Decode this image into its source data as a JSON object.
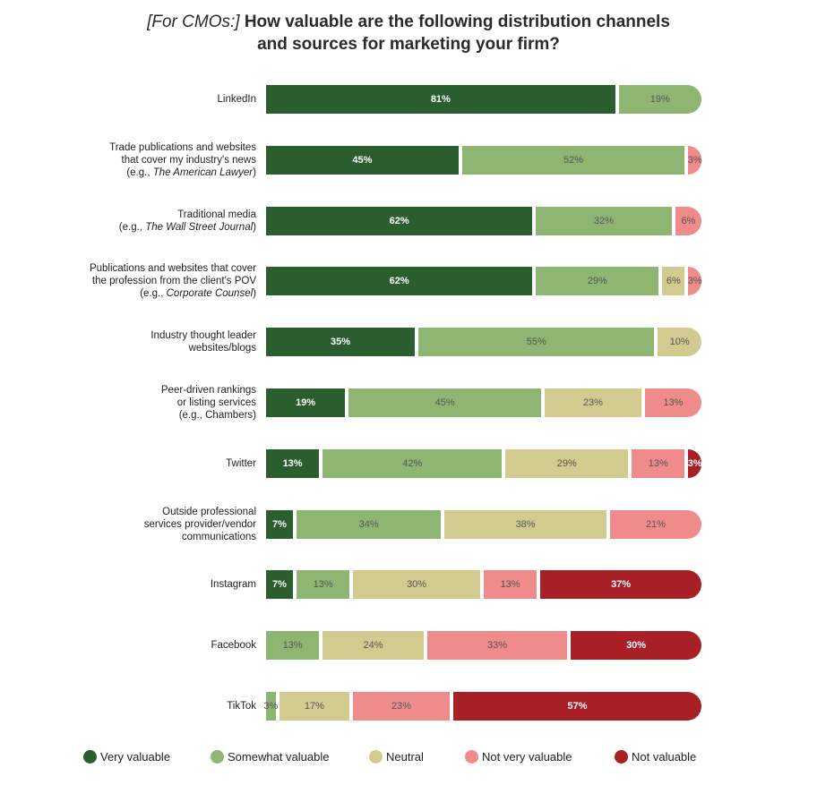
{
  "title": {
    "prefix": "[For CMOs:]",
    "line1": " How valuable are the following distribution channels",
    "line2": "and sources for marketing your firm?"
  },
  "colors": {
    "very_valuable": "#2b5e2e",
    "somewhat_valuable": "#8fb573",
    "neutral": "#d2cb8f",
    "not_very_valuable": "#f08b8b",
    "not_valuable": "#a81f25"
  },
  "legend": [
    {
      "key": "very_valuable",
      "label": "Very valuable"
    },
    {
      "key": "somewhat_valuable",
      "label": "Somewhat valuable"
    },
    {
      "key": "neutral",
      "label": "Neutral"
    },
    {
      "key": "not_very_valuable",
      "label": "Not very valuable"
    },
    {
      "key": "not_valuable",
      "label": "Not valuable"
    }
  ],
  "chart_data": {
    "type": "bar",
    "orientation": "horizontal-stacked-100",
    "categories": [
      "LinkedIn",
      "Trade publications and websites that cover my industry's news (e.g., The American Lawyer)",
      "Traditional media (e.g., The Wall Street Journal)",
      "Publications and websites that cover the profession from the client's POV (e.g., Corporate Counsel)",
      "Industry thought leader websites/blogs",
      "Peer-driven rankings or listing services (e.g., Chambers)",
      "Twitter",
      "Outside professional services provider/vendor communications",
      "Instagram",
      "Facebook",
      "TikTok"
    ],
    "series": [
      {
        "name": "Very valuable",
        "key": "very_valuable",
        "values": [
          81,
          45,
          62,
          62,
          35,
          19,
          13,
          7,
          7,
          0,
          0
        ]
      },
      {
        "name": "Somewhat valuable",
        "key": "somewhat_valuable",
        "values": [
          19,
          52,
          32,
          29,
          55,
          45,
          42,
          34,
          13,
          13,
          3
        ]
      },
      {
        "name": "Neutral",
        "key": "neutral",
        "values": [
          0,
          0,
          0,
          6,
          10,
          23,
          29,
          38,
          30,
          24,
          17
        ]
      },
      {
        "name": "Not very valuable",
        "key": "not_very_valuable",
        "values": [
          0,
          3,
          6,
          3,
          0,
          13,
          13,
          21,
          13,
          33,
          23
        ]
      },
      {
        "name": "Not valuable",
        "key": "not_valuable",
        "values": [
          0,
          0,
          0,
          0,
          0,
          0,
          3,
          0,
          37,
          30,
          57
        ]
      }
    ],
    "rows": [
      {
        "lines": [
          [
            {
              "t": "LinkedIn"
            }
          ]
        ]
      },
      {
        "lines": [
          [
            {
              "t": "Trade publications and websites"
            }
          ],
          [
            {
              "t": "that cover my industry's news"
            }
          ],
          [
            {
              "t": "(e.g., "
            },
            {
              "t": "The American Lawyer",
              "i": true
            },
            {
              "t": ")"
            }
          ]
        ]
      },
      {
        "lines": [
          [
            {
              "t": "Traditional media"
            }
          ],
          [
            {
              "t": "(e.g., "
            },
            {
              "t": "The Wall Street Journal",
              "i": true
            },
            {
              "t": ")"
            }
          ]
        ]
      },
      {
        "lines": [
          [
            {
              "t": "Publications and websites that cover"
            }
          ],
          [
            {
              "t": "the profession from the client's POV"
            }
          ],
          [
            {
              "t": "(e.g., "
            },
            {
              "t": "Corporate Counsel",
              "i": true
            },
            {
              "t": ")"
            }
          ]
        ]
      },
      {
        "lines": [
          [
            {
              "t": "Industry thought leader"
            }
          ],
          [
            {
              "t": "websites/blogs"
            }
          ]
        ]
      },
      {
        "lines": [
          [
            {
              "t": "Peer-driven rankings"
            }
          ],
          [
            {
              "t": "or listing services"
            }
          ],
          [
            {
              "t": "(e.g., Chambers)"
            }
          ]
        ]
      },
      {
        "lines": [
          [
            {
              "t": "Twitter"
            }
          ]
        ]
      },
      {
        "lines": [
          [
            {
              "t": "Outside professional"
            }
          ],
          [
            {
              "t": "services provider/vendor"
            }
          ],
          [
            {
              "t": "communications"
            }
          ]
        ]
      },
      {
        "lines": [
          [
            {
              "t": "Instagram"
            }
          ]
        ]
      },
      {
        "lines": [
          [
            {
              "t": "Facebook"
            }
          ]
        ]
      },
      {
        "lines": [
          [
            {
              "t": "TikTok"
            }
          ]
        ]
      }
    ],
    "unit": "%",
    "title": "[For CMOs:] How valuable are the following distribution channels and sources for marketing your firm?"
  }
}
